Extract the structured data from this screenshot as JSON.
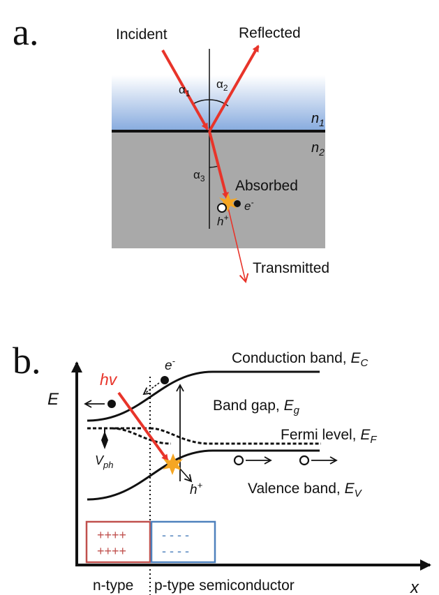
{
  "panel_a": {
    "label": "a.",
    "incident": "Incident",
    "reflected": "Reflected",
    "alpha1": "α",
    "alpha1_sub": "1",
    "alpha2": "α",
    "alpha2_sub": "2",
    "alpha3": "α",
    "alpha3_sub": "3",
    "n1": "n",
    "n1_sub": "1",
    "n2": "n",
    "n2_sub": "2",
    "absorbed": "Absorbed",
    "electron": "e",
    "electron_sup": "-",
    "hole": "h",
    "hole_sup": "+",
    "transmitted": "Transmitted"
  },
  "panel_b": {
    "label": "b.",
    "axis_y": "E",
    "axis_x": "x",
    "hv": "hv",
    "electron": "e",
    "electron_sup": "-",
    "hole": "h",
    "hole_sup": "+",
    "conduction": "Conduction band, ",
    "conduction_sym": "E",
    "conduction_sub": "C",
    "bandgap": "Band gap, ",
    "bandgap_sym": "E",
    "bandgap_sub": "g",
    "fermi": "Fermi level, ",
    "fermi_sym": "E",
    "fermi_sub": "F",
    "valence": "Valence band, ",
    "valence_sym": "E",
    "valence_sub": "V",
    "vph": "V",
    "vph_sub": "ph",
    "n_charges_row1": "++++",
    "n_charges_row2": "++++",
    "p_charges_row1": "- - - -",
    "p_charges_row2": "- - - -",
    "n_type": "n-type",
    "p_type": "p-type semiconductor"
  },
  "colors": {
    "ray": "#e8342a",
    "medium1_top": "#7fa6df",
    "medium2": "#a9a9a9",
    "n_box": "#c0504d",
    "p_box": "#4f81bd",
    "spark": "#f5a623"
  }
}
